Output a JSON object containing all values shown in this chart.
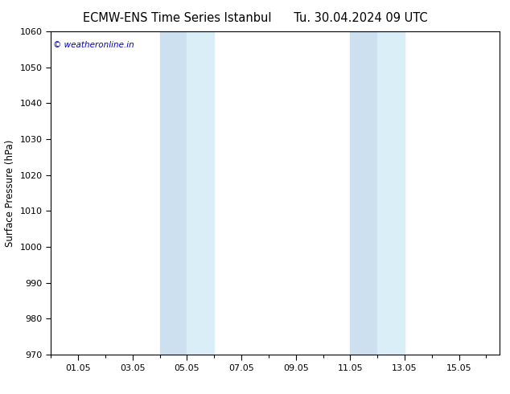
{
  "title_left": "ECMW-ENS Time Series Istanbul",
  "title_right": "Tu. 30.04.2024 09 UTC",
  "ylabel": "Surface Pressure (hPa)",
  "ylim": [
    970,
    1060
  ],
  "yticks": [
    970,
    980,
    990,
    1000,
    1010,
    1020,
    1030,
    1040,
    1050,
    1060
  ],
  "xtick_labels": [
    "01.05",
    "03.05",
    "05.05",
    "07.05",
    "09.05",
    "11.05",
    "13.05",
    "15.05"
  ],
  "xtick_positions": [
    1,
    3,
    5,
    7,
    9,
    11,
    13,
    15
  ],
  "xlim": [
    0.0,
    16.5
  ],
  "shaded_bands": [
    {
      "x_start": 4.0,
      "x_end": 5.0
    },
    {
      "x_start": 5.0,
      "x_end": 6.0
    },
    {
      "x_start": 11.0,
      "x_end": 12.0
    },
    {
      "x_start": 12.0,
      "x_end": 13.0
    }
  ],
  "shade_color_dark": "#cce0f0",
  "shade_color_light": "#daeef8",
  "watermark_text": "© weatheronline.in",
  "watermark_color": "#0000cc",
  "watermark_fontsize": 7.5,
  "bg_color": "#ffffff",
  "title_fontsize": 10.5,
  "ylabel_fontsize": 8.5,
  "tick_fontsize": 8
}
